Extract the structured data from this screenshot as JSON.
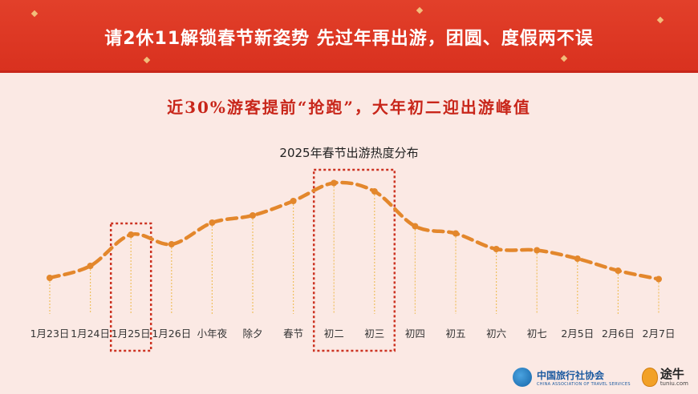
{
  "banner": {
    "title": "请2休11解锁春节新姿势  先过年再出游，团圆、度假两不误"
  },
  "subtitle": "近30%游客提前“抢跑”，大年初二迎出游峰值",
  "chart_data": {
    "type": "line",
    "title": "2025年春节出游热度分布",
    "categories": [
      "1月23日",
      "1月24日",
      "1月25日",
      "1月26日",
      "小年夜",
      "除夕",
      "春节",
      "初二",
      "初三",
      "初四",
      "初五",
      "初六",
      "初七",
      "2月5日",
      "2月6日",
      "2月7日"
    ],
    "series": [
      {
        "values": [
          30,
          40,
          66,
          58,
          76,
          82,
          94,
          109,
          102,
          73,
          67,
          54,
          53,
          46,
          36,
          29
        ]
      }
    ],
    "ylim": [
      0,
      120
    ],
    "grid": false,
    "highlight_boxes": [
      [
        "1月25日"
      ],
      [
        "初二",
        "初三"
      ]
    ],
    "colors": {
      "line": "#e3872c",
      "highlight": "#cc3322",
      "drop_line": "#f0c060"
    }
  },
  "logos": {
    "cats_name": "中国旅行社协会",
    "cats_sub": "CHINA ASSOCIATION OF TRAVEL SERVICES",
    "tuniu_name": "途牛",
    "tuniu_sub": "tuniu.com"
  }
}
